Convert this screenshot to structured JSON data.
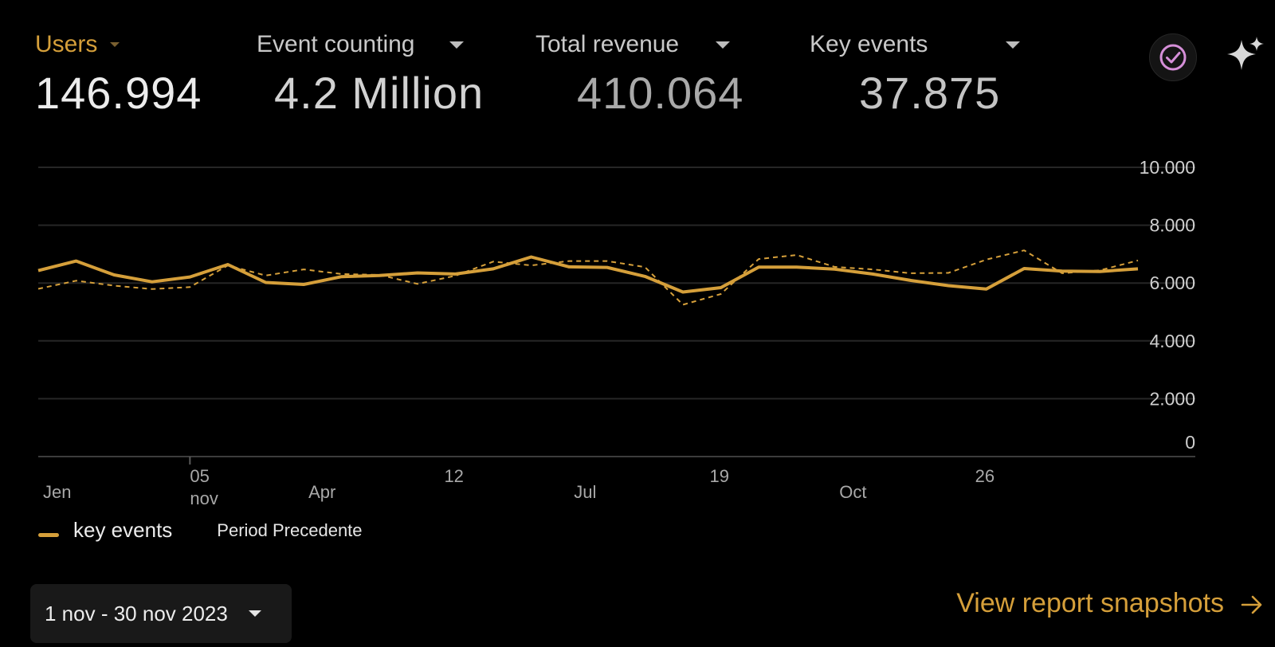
{
  "metrics": [
    {
      "label": "Users",
      "value": "146.994"
    },
    {
      "label": "Event counting",
      "value": "4.2 Million"
    },
    {
      "label": "Total revenue",
      "value": "410.064"
    },
    {
      "label": "Key events",
      "value": "37.875"
    }
  ],
  "icons": {
    "verify": "check-circle-icon",
    "insights": "sparkle-icon",
    "dropdown": "chevron-down-icon",
    "arrow": "arrow-right-icon"
  },
  "colors": {
    "accent": "#d59f3a",
    "background": "#000000",
    "check_icon": "#d58fd8"
  },
  "chart_data": {
    "type": "line",
    "y_ticks": [
      "10.000",
      "8.000",
      "6.000",
      "4.000",
      "2.000",
      "0"
    ],
    "ylim": [
      0,
      10000
    ],
    "x_tick_labels": [
      {
        "text": "Jen",
        "index": 0
      },
      {
        "text": "05",
        "sub": "nov",
        "index": 4
      },
      {
        "text": "Apr",
        "index": 7
      },
      {
        "text": "12",
        "index": 11
      },
      {
        "text": "Jul",
        "index": 14
      },
      {
        "text": "19",
        "index": 18
      },
      {
        "text": "Oct",
        "index": 21
      },
      {
        "text": "26",
        "index": 25
      }
    ],
    "series": [
      {
        "name": "key events",
        "style": "solid",
        "values": [
          6430,
          6760,
          6280,
          6040,
          6210,
          6640,
          6020,
          5950,
          6220,
          6260,
          6350,
          6310,
          6490,
          6900,
          6560,
          6540,
          6230,
          5690,
          5840,
          6550,
          6550,
          6480,
          6310,
          6090,
          5910,
          5790,
          6500,
          6410,
          6400,
          6490
        ]
      },
      {
        "name": "Period Precedente",
        "style": "dashed",
        "values": [
          5800,
          6080,
          5910,
          5790,
          5860,
          6610,
          6260,
          6470,
          6310,
          6280,
          5970,
          6250,
          6740,
          6610,
          6760,
          6760,
          6550,
          5250,
          5620,
          6830,
          6970,
          6560,
          6470,
          6340,
          6350,
          6810,
          7130,
          6340,
          6440,
          6780
        ]
      }
    ]
  },
  "legend": {
    "series1": "key events",
    "series2": "Period Precedente"
  },
  "date_range": "1 nov - 30 nov 2023",
  "view_link": "View report snapshots"
}
